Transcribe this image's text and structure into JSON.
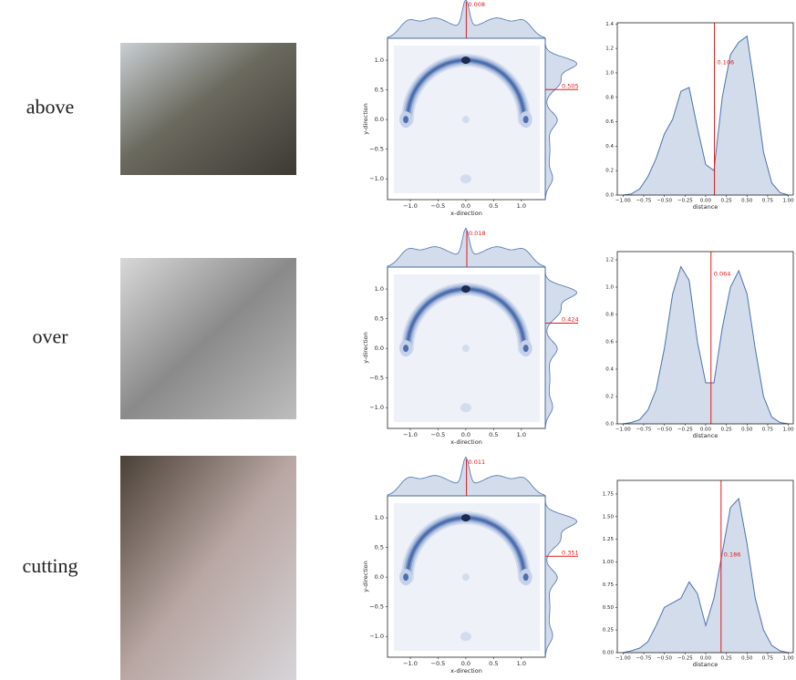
{
  "rows": [
    {
      "label": "above",
      "joint": {
        "type": "kde2d",
        "xlabel": "x-direction",
        "ylabel": "y-direction",
        "xlim": [
          -1.41,
          1.43
        ],
        "ylim": [
          -1.35,
          1.37
        ],
        "xticks": [
          {
            "value": -1.0,
            "label": "−1.0"
          },
          {
            "value": -0.5,
            "label": "−0.5"
          },
          {
            "value": 0.0,
            "label": "0.0"
          },
          0.5,
          {
            "value": 1.0,
            "label": "1.0"
          }
        ],
        "yticks": [
          {
            "value": -1.0,
            "label": "−1.0"
          },
          {
            "value": -0.5,
            "label": "−0.5"
          },
          {
            "value": 0.0,
            "label": "0.0"
          },
          0.5,
          {
            "value": 1.0,
            "label": "1.0"
          }
        ],
        "x_marker": 0.008,
        "y_marker": 0.505
      },
      "density": {
        "type": "area",
        "xlabel": "distance",
        "color": "#4c72b0",
        "x": [
          -1.0,
          -0.9,
          -0.8,
          -0.7,
          -0.6,
          -0.5,
          -0.4,
          -0.3,
          -0.2,
          -0.1,
          0.0,
          0.1,
          0.2,
          0.3,
          0.4,
          0.5,
          0.6,
          0.7,
          0.8,
          0.9,
          1.0
        ],
        "values": [
          0.0,
          0.01,
          0.05,
          0.15,
          0.3,
          0.5,
          0.62,
          0.85,
          0.88,
          0.55,
          0.25,
          0.2,
          0.8,
          1.15,
          1.25,
          1.3,
          0.85,
          0.35,
          0.1,
          0.02,
          0.0
        ],
        "xlim": [
          -1.07,
          1.06
        ],
        "ylim": [
          0,
          1.41
        ],
        "xticks": [
          {
            "value": -1.0,
            "label": "−1.00"
          },
          {
            "value": -0.75,
            "label": "−0.75"
          },
          {
            "value": -0.5,
            "label": "−0.50"
          },
          {
            "value": -0.25,
            "label": "−0.25"
          },
          {
            "value": 0.0,
            "label": "0.00"
          },
          0.25,
          {
            "value": 0.5,
            "label": "0.50"
          },
          0.75,
          {
            "value": 1.0,
            "label": "1.00"
          }
        ],
        "yticks": [
          {
            "value": 0.0,
            "label": "0.0"
          },
          0.2,
          0.4,
          0.6,
          0.8,
          {
            "value": 1.0,
            "label": "1.0"
          },
          1.2,
          1.4
        ],
        "marker": 0.106
      }
    },
    {
      "label": "over",
      "joint": {
        "type": "kde2d",
        "xlabel": "x-direction",
        "ylabel": "y-direction",
        "xlim": [
          -1.41,
          1.43
        ],
        "ylim": [
          -1.35,
          1.37
        ],
        "xticks": [
          {
            "value": -1.0,
            "label": "−1.0"
          },
          {
            "value": -0.5,
            "label": "−0.5"
          },
          {
            "value": 0.0,
            "label": "0.0"
          },
          0.5,
          {
            "value": 1.0,
            "label": "1.0"
          }
        ],
        "yticks": [
          {
            "value": -1.0,
            "label": "−1.0"
          },
          {
            "value": -0.5,
            "label": "−0.5"
          },
          {
            "value": 0.0,
            "label": "0.0"
          },
          0.5,
          {
            "value": 1.0,
            "label": "1.0"
          }
        ],
        "x_marker": 0.018,
        "y_marker": 0.424
      },
      "density": {
        "type": "area",
        "xlabel": "distance",
        "color": "#4c72b0",
        "x": [
          -1.0,
          -0.9,
          -0.8,
          -0.7,
          -0.6,
          -0.5,
          -0.4,
          -0.3,
          -0.2,
          -0.1,
          0.0,
          0.1,
          0.2,
          0.3,
          0.4,
          0.5,
          0.6,
          0.7,
          0.8,
          0.9,
          1.0
        ],
        "values": [
          0.0,
          0.01,
          0.03,
          0.1,
          0.25,
          0.55,
          0.95,
          1.15,
          1.05,
          0.6,
          0.3,
          0.3,
          0.7,
          1.0,
          1.12,
          0.95,
          0.55,
          0.2,
          0.05,
          0.01,
          0.0
        ],
        "xlim": [
          -1.07,
          1.06
        ],
        "ylim": [
          0,
          1.26
        ],
        "xticks": [
          {
            "value": -1.0,
            "label": "−1.00"
          },
          {
            "value": -0.75,
            "label": "−0.75"
          },
          {
            "value": -0.5,
            "label": "−0.50"
          },
          {
            "value": -0.25,
            "label": "−0.25"
          },
          {
            "value": 0.0,
            "label": "0.00"
          },
          0.25,
          {
            "value": 0.5,
            "label": "0.50"
          },
          0.75,
          {
            "value": 1.0,
            "label": "1.00"
          }
        ],
        "yticks": [
          {
            "value": 0.0,
            "label": "0.0"
          },
          0.2,
          0.4,
          0.6,
          0.8,
          {
            "value": 1.0,
            "label": "1.0"
          },
          1.2
        ],
        "marker": 0.064
      }
    },
    {
      "label": "cutting",
      "joint": {
        "type": "kde2d",
        "xlabel": "x-direction",
        "ylabel": "y-direction",
        "xlim": [
          -1.41,
          1.43
        ],
        "ylim": [
          -1.35,
          1.37
        ],
        "xticks": [
          {
            "value": -1.0,
            "label": "−1.0"
          },
          {
            "value": -0.5,
            "label": "−0.5"
          },
          {
            "value": 0.0,
            "label": "0.0"
          },
          0.5,
          {
            "value": 1.0,
            "label": "1.0"
          }
        ],
        "yticks": [
          {
            "value": -1.0,
            "label": "−1.0"
          },
          {
            "value": -0.5,
            "label": "−0.5"
          },
          {
            "value": 0.0,
            "label": "0.0"
          },
          0.5,
          {
            "value": 1.0,
            "label": "1.0"
          }
        ],
        "x_marker": 0.011,
        "y_marker": 0.351
      },
      "density": {
        "type": "area",
        "xlabel": "distance",
        "color": "#4c72b0",
        "x": [
          -1.0,
          -0.9,
          -0.8,
          -0.7,
          -0.6,
          -0.5,
          -0.4,
          -0.3,
          -0.2,
          -0.1,
          0.0,
          0.1,
          0.2,
          0.3,
          0.4,
          0.5,
          0.6,
          0.7,
          0.8,
          0.9,
          1.0
        ],
        "values": [
          0.0,
          0.02,
          0.05,
          0.12,
          0.3,
          0.5,
          0.55,
          0.6,
          0.78,
          0.65,
          0.3,
          0.6,
          1.1,
          1.6,
          1.7,
          1.2,
          0.6,
          0.25,
          0.08,
          0.02,
          0.0
        ],
        "xlim": [
          -1.07,
          1.06
        ],
        "ylim": [
          0,
          1.9
        ],
        "xticks": [
          {
            "value": -1.0,
            "label": "−1.00"
          },
          {
            "value": -0.75,
            "label": "−0.75"
          },
          {
            "value": -0.5,
            "label": "−0.50"
          },
          {
            "value": -0.25,
            "label": "−0.25"
          },
          {
            "value": 0.0,
            "label": "0.00"
          },
          0.25,
          {
            "value": 0.5,
            "label": "0.50"
          },
          0.75,
          {
            "value": 1.0,
            "label": "1.00"
          }
        ],
        "yticks": [
          {
            "value": 0.0,
            "label": "0.00"
          },
          0.25,
          {
            "value": 0.5,
            "label": "0.50"
          },
          0.75,
          {
            "value": 1.0,
            "label": "1.00"
          },
          1.25,
          {
            "value": 1.5,
            "label": "1.50"
          },
          1.75
        ],
        "marker": 0.186
      }
    }
  ]
}
